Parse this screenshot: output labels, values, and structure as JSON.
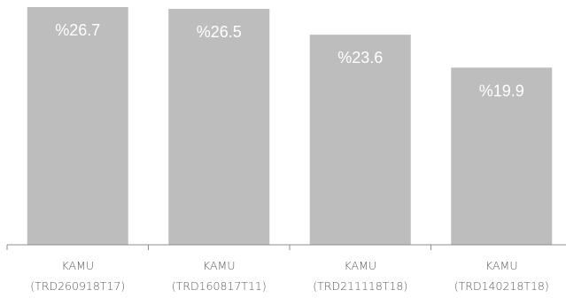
{
  "chart_data": {
    "type": "bar",
    "categories": [
      {
        "line1": "KAMU",
        "line2": "(TRD260918T17)"
      },
      {
        "line1": "KAMU",
        "line2": "(TRD160817T11)"
      },
      {
        "line1": "KAMU",
        "line2": "(TRD211118T18)"
      },
      {
        "line1": "KAMU",
        "line2": "(TRD140218T18)"
      }
    ],
    "values": [
      26.7,
      26.5,
      23.6,
      19.9
    ],
    "data_labels": [
      "%26.7",
      "%26.5",
      "%23.6",
      "%19.9"
    ],
    "title": "",
    "xlabel": "",
    "ylabel": "",
    "ylim": [
      0,
      27.5
    ],
    "grid": false,
    "legend": "none",
    "bar_color": "#bdbdbd",
    "label_color": "#ffffff"
  }
}
